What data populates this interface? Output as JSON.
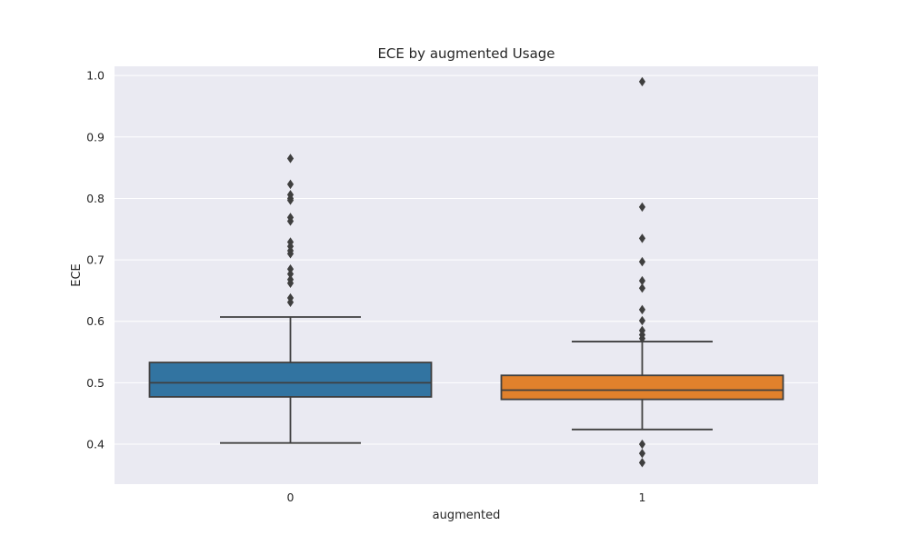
{
  "chart_data": {
    "type": "box",
    "title": "ECE by augmented Usage",
    "xlabel": "augmented",
    "ylabel": "ECE",
    "ylim": [
      0.335,
      1.015
    ],
    "yticks": [
      "0.4",
      "0.5",
      "0.6",
      "0.7",
      "0.8",
      "0.9",
      "1.0"
    ],
    "grid": true,
    "categories": [
      "0",
      "1"
    ],
    "colors": {
      "plot_background": "#eaeaf2",
      "grid": "#ffffff",
      "line": "#3f3f3f",
      "text": "#262626"
    },
    "boxes": [
      {
        "category": "0",
        "color": "#3274a1",
        "whisker_low": 0.402,
        "q1": 0.477,
        "median": 0.5,
        "q3": 0.533,
        "whisker_high": 0.607,
        "outliers": [
          0.865,
          0.823,
          0.806,
          0.8,
          0.797,
          0.769,
          0.763,
          0.729,
          0.722,
          0.715,
          0.71,
          0.685,
          0.677,
          0.668,
          0.662,
          0.638,
          0.631
        ]
      },
      {
        "category": "1",
        "color": "#e1812c",
        "whisker_low": 0.424,
        "q1": 0.473,
        "median": 0.488,
        "q3": 0.512,
        "whisker_high": 0.567,
        "outliers": [
          0.99,
          0.786,
          0.735,
          0.697,
          0.666,
          0.654,
          0.619,
          0.601,
          0.585,
          0.578,
          0.572,
          0.4,
          0.385,
          0.37
        ]
      }
    ]
  }
}
